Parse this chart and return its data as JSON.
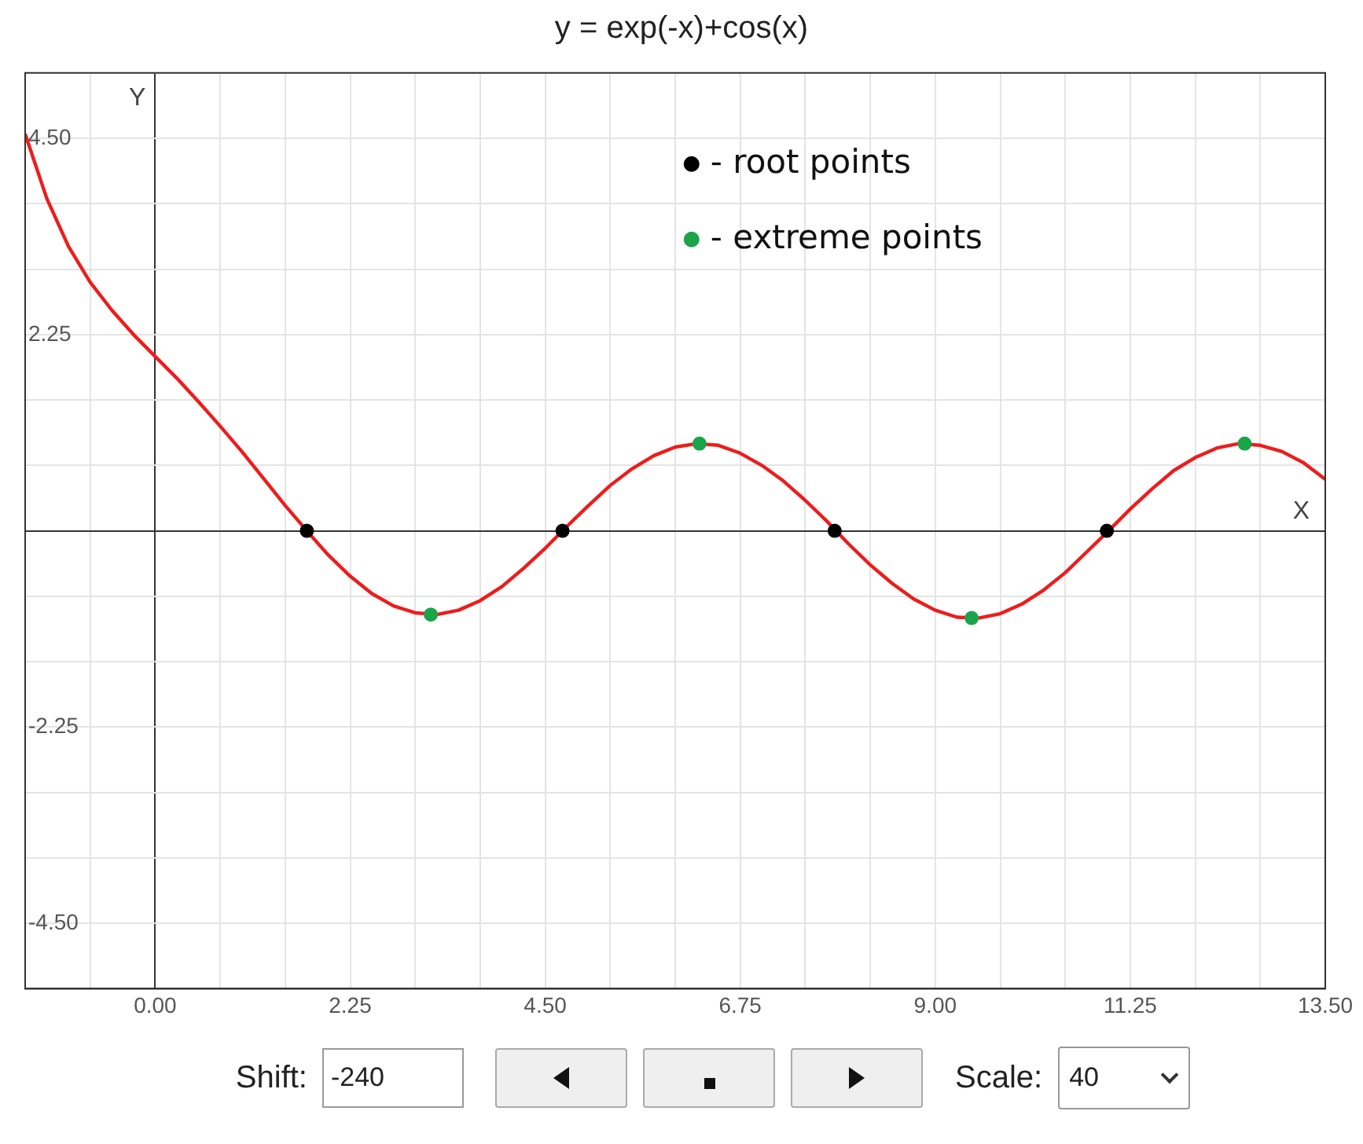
{
  "chart_data": {
    "type": "line",
    "title": "y = exp(-x)+cos(x)",
    "xlabel": "X",
    "ylabel": "Y",
    "xlim": [
      -1.5,
      13.5
    ],
    "ylim": [
      -5.25,
      5.25
    ],
    "xticks": [
      {
        "value": -1.5,
        "label": null
      },
      {
        "value": -0.75,
        "label": null
      },
      {
        "value": 0,
        "label": "0.00"
      },
      {
        "value": 0.75,
        "label": null
      },
      {
        "value": 1.5,
        "label": null
      },
      {
        "value": 2.25,
        "label": "2.25"
      },
      {
        "value": 3,
        "label": null
      },
      {
        "value": 3.75,
        "label": null
      },
      {
        "value": 4.5,
        "label": "4.50"
      },
      {
        "value": 5.25,
        "label": null
      },
      {
        "value": 6,
        "label": null
      },
      {
        "value": 6.75,
        "label": "6.75"
      },
      {
        "value": 7.5,
        "label": null
      },
      {
        "value": 8.25,
        "label": null
      },
      {
        "value": 9,
        "label": "9.00"
      },
      {
        "value": 9.75,
        "label": null
      },
      {
        "value": 10.5,
        "label": null
      },
      {
        "value": 11.25,
        "label": "11.25"
      },
      {
        "value": 12,
        "label": null
      },
      {
        "value": 12.75,
        "label": null
      },
      {
        "value": 13.5,
        "label": "13.50"
      }
    ],
    "yticks": [
      {
        "value": -5.25,
        "label": null
      },
      {
        "value": -4.5,
        "label": "-4.50"
      },
      {
        "value": -3.75,
        "label": null
      },
      {
        "value": -3,
        "label": null
      },
      {
        "value": -2.25,
        "label": "-2.25"
      },
      {
        "value": -1.5,
        "label": null
      },
      {
        "value": -0.75,
        "label": null
      },
      {
        "value": 0,
        "label": null
      },
      {
        "value": 0.75,
        "label": null
      },
      {
        "value": 1.5,
        "label": null
      },
      {
        "value": 2.25,
        "label": "2.25"
      },
      {
        "value": 3,
        "label": null
      },
      {
        "value": 3.75,
        "label": null
      },
      {
        "value": 4.5,
        "label": "4.50"
      },
      {
        "value": 5.25,
        "label": null
      }
    ],
    "grid": true,
    "legend": "top right",
    "line_style": "solid",
    "series": [
      {
        "color": "#ee1c1c",
        "marker": "none",
        "x": [
          -1.5,
          -1.25,
          -1,
          -0.75,
          -0.5,
          -0.25,
          0,
          0.25,
          0.5,
          0.75,
          1,
          1.25,
          1.5,
          1.75,
          2,
          2.25,
          2.5,
          2.75,
          3,
          3.25,
          3.5,
          3.75,
          4,
          4.25,
          4.5,
          4.75,
          5,
          5.25,
          5.5,
          5.75,
          6,
          6.25,
          6.5,
          6.75,
          7,
          7.25,
          7.5,
          7.75,
          8,
          8.25,
          8.5,
          8.75,
          9,
          9.25,
          9.5,
          9.75,
          10,
          10.25,
          10.5,
          10.75,
          11,
          11.25,
          11.5,
          11.75,
          12,
          12.25,
          12.5,
          12.75,
          13,
          13.25,
          13.5
        ],
        "values": [
          4.55,
          3.81,
          3.26,
          2.85,
          2.53,
          2.25,
          2,
          1.75,
          1.48,
          1.2,
          0.91,
          0.6,
          0.29,
          0,
          -0.28,
          -0.52,
          -0.72,
          -0.86,
          -0.94,
          -0.96,
          -0.91,
          -0.8,
          -0.64,
          -0.43,
          -0.2,
          0.05,
          0.29,
          0.52,
          0.71,
          0.86,
          0.96,
          1,
          0.98,
          0.89,
          0.75,
          0.57,
          0.35,
          0.11,
          -0.15,
          -0.39,
          -0.6,
          -0.78,
          -0.91,
          -0.99,
          -1,
          -0.95,
          -0.84,
          -0.68,
          -0.48,
          -0.24,
          0,
          0.25,
          0.48,
          0.69,
          0.84,
          0.95,
          1,
          0.98,
          0.91,
          0.78,
          0.59
        ]
      },
      {
        "type": "scatter",
        "name": "- root points",
        "color": "#000000",
        "marker": "circle",
        "x": [
          1.75,
          4.7,
          7.84,
          10.98
        ],
        "values": [
          0,
          0,
          0,
          0
        ]
      },
      {
        "type": "scatter",
        "name": "- extreme points",
        "color": "#1aa54a",
        "marker": "circle",
        "x": [
          3.18,
          6.28,
          9.42,
          12.57
        ],
        "values": [
          -0.96,
          1,
          -1,
          1
        ]
      }
    ],
    "annotations": [
      "Shift:",
      "-240",
      "Scale:",
      "40"
    ]
  }
}
